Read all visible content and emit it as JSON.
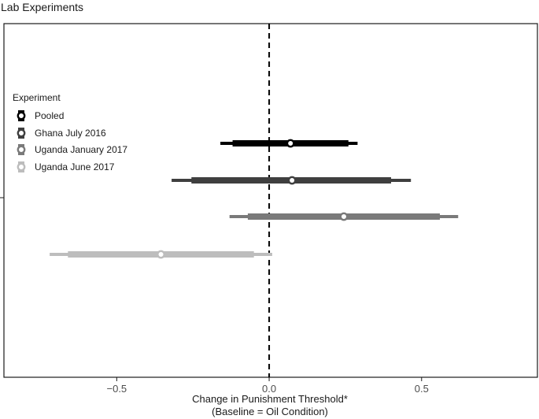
{
  "chart_data": {
    "type": "forest",
    "title": "Lab Experiments",
    "xlabel_line1": "Change in Punishment Threshold*",
    "xlabel_line2": "(Baseline = Oil Condition)",
    "ylabel": "",
    "xlim": [
      -0.87,
      0.88
    ],
    "xticks": [
      {
        "value": -0.5,
        "label": "−0.5"
      },
      {
        "value": 0.0,
        "label": "0.0"
      },
      {
        "value": 0.5,
        "label": "0.5"
      }
    ],
    "reference_line": {
      "x": 0,
      "style": "dashed"
    },
    "grid": false,
    "legend": {
      "title": "Experiment",
      "placement": "left"
    },
    "series": [
      {
        "name": "Pooled",
        "color": "#000000",
        "estimate": 0.07,
        "ci_inner": [
          -0.12,
          0.26
        ],
        "ci_outer": [
          -0.16,
          0.29
        ]
      },
      {
        "name": "Ghana July 2016",
        "color": "#3f3f3f",
        "estimate": 0.075,
        "ci_inner": [
          -0.255,
          0.4
        ],
        "ci_outer": [
          -0.32,
          0.465
        ]
      },
      {
        "name": "Uganda January 2017",
        "color": "#7a7a7a",
        "estimate": 0.245,
        "ci_inner": [
          -0.07,
          0.56
        ],
        "ci_outer": [
          -0.13,
          0.62
        ]
      },
      {
        "name": "Uganda June 2017",
        "color": "#bdbdbd",
        "estimate": -0.355,
        "ci_inner": [
          -0.66,
          -0.05
        ],
        "ci_outer": [
          -0.72,
          0.01
        ]
      }
    ]
  }
}
